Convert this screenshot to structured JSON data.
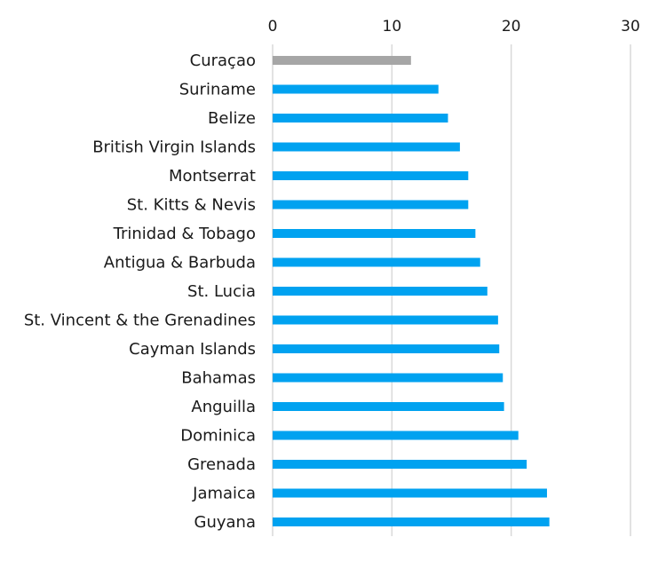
{
  "chart_data": {
    "type": "bar",
    "orientation": "horizontal",
    "x_axis_position": "top",
    "grid": true,
    "xlim": [
      0,
      30
    ],
    "x_ticks": [
      0,
      10,
      20,
      30
    ],
    "x_tick_labels": [
      "0",
      "10",
      "20",
      "30"
    ],
    "categories": [
      "Curaçao",
      "Suriname",
      "Belize",
      "British Virgin Islands",
      "Montserrat",
      "St. Kitts & Nevis",
      "Trinidad & Tobago",
      "Antigua & Barbuda",
      "St. Lucia",
      "St. Vincent & the Grenadines",
      "Cayman Islands",
      "Bahamas",
      "Anguilla",
      "Dominica",
      "Grenada",
      "Jamaica",
      "Guyana"
    ],
    "values": [
      11.6,
      13.9,
      14.7,
      15.7,
      16.4,
      16.4,
      17.0,
      17.4,
      18.0,
      18.9,
      19.0,
      19.3,
      19.4,
      20.6,
      21.3,
      23.0,
      23.2
    ],
    "colors": {
      "highlight": "#a6a6a6",
      "default": "#00a2f0"
    },
    "highlight_index": 0
  }
}
